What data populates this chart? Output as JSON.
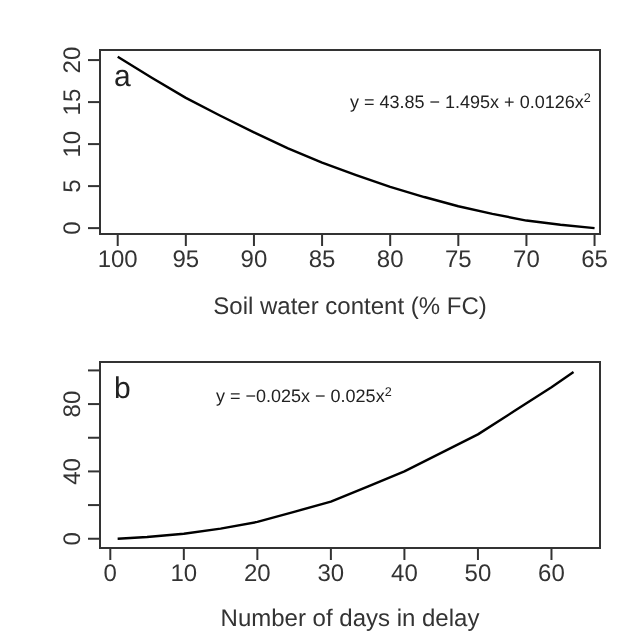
{
  "chart_data": [
    {
      "type": "line",
      "xlabel": "Soil water content (% FC)",
      "annotations": [
        "a",
        "y = 43.85 − 1.495x + 0.0126x$^{2}$"
      ],
      "x": [
        100,
        97.5,
        95,
        92.5,
        90,
        87.5,
        85,
        82.5,
        80,
        77.5,
        75,
        72.5,
        70,
        67.5,
        65
      ],
      "series": [
        {
          "color": "#000000",
          "values": [
            20.4,
            17.9,
            15.5,
            13.4,
            11.4,
            9.5,
            7.8,
            6.3,
            4.9,
            3.7,
            2.6,
            1.7,
            0.9,
            0.4,
            0
          ]
        }
      ],
      "xlim": [
        101.3,
        64.6
      ],
      "ylim": [
        -0.7,
        21.2
      ],
      "xticks": [
        100,
        95,
        90,
        85,
        80,
        75,
        70,
        65
      ],
      "yticks": [
        0,
        5,
        10,
        15,
        20
      ]
    },
    {
      "type": "line",
      "xlabel": "Number of days in delay",
      "annotations": [
        "b",
        "y = −0.025x − 0.025x$^{2}$"
      ],
      "x": [
        1,
        5,
        10,
        15,
        20,
        25,
        30,
        35,
        40,
        45,
        50,
        55,
        60,
        63
      ],
      "series": [
        {
          "color": "#000000",
          "values": [
            0,
            1,
            3,
            6,
            10,
            16,
            22,
            31,
            40,
            51,
            62,
            76,
            90,
            99
          ]
        }
      ],
      "xlim": [
        -1.4,
        66.6
      ],
      "ylim": [
        -5.5,
        105
      ],
      "xticks": [
        0,
        10,
        20,
        30,
        40,
        50,
        60
      ],
      "yticks": [
        0,
        {
          "value": 20,
          "label": null
        },
        40,
        {
          "value": 60,
          "label": null
        },
        80,
        {
          "value": 100,
          "label": null
        }
      ]
    }
  ]
}
